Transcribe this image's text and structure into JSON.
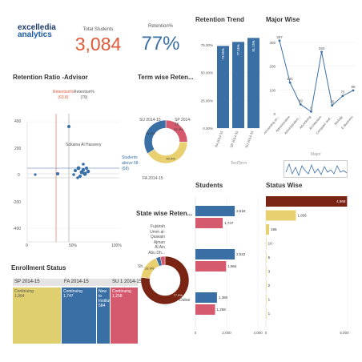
{
  "logo": {
    "line1": "excelledia",
    "line2": "analytics",
    "brand_color": "#1a5aa5"
  },
  "kpis": {
    "total_students": {
      "label": "Total Students",
      "value": "3,084",
      "color": "#e05a3a"
    },
    "retention": {
      "label": "Retention%",
      "value": "77%",
      "color": "#3a6fa5"
    }
  },
  "retention_trend": {
    "title": "Retention Trend",
    "chart_data": {
      "type": "bar",
      "categories": [
        "FA 2014-15",
        "SP 2014-15",
        "SU 2014-15"
      ],
      "values": [
        73.96,
        77.56,
        81.15
      ],
      "labels": [
        "73.96%",
        "77.56%",
        "81.15%"
      ],
      "ytick_labels": [
        "75.00%",
        "50.00%",
        "25.00%",
        "0.00%"
      ],
      "ylim": [
        0,
        85
      ],
      "color": "#3a6fa5",
      "xlabel": "TextTerm"
    }
  },
  "major_wise": {
    "title": "Major Wise",
    "chart_data": {
      "type": "line",
      "categories": [
        "Accounting an...",
        "Administrative",
        "Administration...",
        "Advertising",
        "Architecture",
        "Computer and...",
        "Biology",
        "E-Business"
      ],
      "values": [
        307,
        131,
        39,
        9,
        260,
        35,
        75,
        98
      ],
      "ytick_labels": [
        "300",
        "200",
        "100",
        "0"
      ],
      "ylim": [
        0,
        330
      ],
      "color": "#3a6fa5"
    },
    "mini_label": "Major"
  },
  "retention_ratio": {
    "title": "Retention Ratio -Advisor",
    "ref_red": {
      "label": "Retention%",
      "value": "(63.8)",
      "color": "#e05a3a"
    },
    "ref_gray": {
      "label": "Retention%",
      "value": "(79)"
    },
    "ref_blue": {
      "label": "Students above 58",
      "value": "(58)",
      "color": "#3a6fa5"
    },
    "annotation": "Sokaina Al Hasseny",
    "ytick_labels": [
      "400",
      "200",
      "0",
      "-200",
      "-400"
    ],
    "xtick_labels": [
      "0",
      "50%",
      "100%"
    ]
  },
  "term_wise": {
    "title": "Term wise Reten...",
    "legend": [
      "SU 2014-15",
      "SP 2014-15",
      "FA 2014-15"
    ],
    "chart_data": {
      "type": "pie",
      "categories": [
        "SU 2014-15",
        "SP 2014-15",
        "FA 2014-15"
      ],
      "values": [
        25.3,
        40.5,
        34.2
      ],
      "labels": [
        "25.3%",
        "40.5%",
        "34.2%"
      ],
      "colors": [
        "#d65a6e",
        "#e8d070",
        "#3a6fa5"
      ]
    }
  },
  "state_wise": {
    "title": "State wise Reten...",
    "legend": [
      "Fujairah",
      "Umm al-Qaiwain",
      "Ajman",
      "Al Ain",
      "Abu Dh...",
      "Sh...",
      "Dubai"
    ],
    "chart_data": {
      "type": "pie",
      "categories": [
        "Dubai",
        "Sh...",
        "Abu Dh...",
        "Others"
      ],
      "values": [
        77.0,
        16.9,
        3.0,
        3.1
      ],
      "labels": [
        "77.0%",
        "16.9%"
      ],
      "colors": [
        "#7a2414",
        "#e8d070",
        "#3a6fa5",
        "#d65a6e"
      ]
    }
  },
  "students": {
    "title": "Students",
    "chart_data": {
      "type": "bar",
      "orientation": "horizontal",
      "groups": [
        {
          "blue": 2518,
          "pink": 1747,
          "blue_label": "2,518",
          "pink_label": "1,747"
        },
        {
          "blue": 2522,
          "pink": 1964,
          "blue_label": "2,522",
          "pink_label": "1,964"
        },
        {
          "blue": 1380,
          "pink": 1258,
          "blue_label": "1,380",
          "pink_label": "1,258"
        }
      ],
      "xtick_labels": [
        "0",
        "2,000",
        "4,000"
      ],
      "xlim": [
        0,
        4000
      ],
      "colors": [
        "#3a6fa5",
        "#d65a6e"
      ]
    }
  },
  "status_wise": {
    "title": "Status Wise",
    "chart_data": {
      "type": "bar",
      "orientation": "horizontal",
      "values": [
        4969,
        1836,
        195,
        10,
        5,
        3,
        2,
        1,
        1
      ],
      "labels": [
        "4,969",
        "1,836",
        "195",
        "10",
        "5",
        "3",
        "2",
        "1",
        "1"
      ],
      "colors": [
        "#7a2414",
        "#e8d070",
        "#e8d070",
        "#e8d070",
        "#e8d070",
        "#e8d070",
        "#e8d070",
        "#e8d070",
        "#e8d070"
      ],
      "xtick_labels": [
        "0",
        "5,000"
      ],
      "xlim": [
        0,
        5000
      ]
    }
  },
  "enrollment": {
    "title": "Enrollment Status",
    "headers": [
      "SP 2014-15",
      "FA 2014-15",
      "SU 1 2014-15"
    ],
    "tiles": [
      {
        "label": "Continuing",
        "value": "1,964"
      },
      {
        "label": "Continuing",
        "value": "1,747"
      },
      {
        "label": "New to Institution",
        "value": "584"
      },
      {
        "label": "Continuing",
        "value": "1,258"
      }
    ]
  }
}
